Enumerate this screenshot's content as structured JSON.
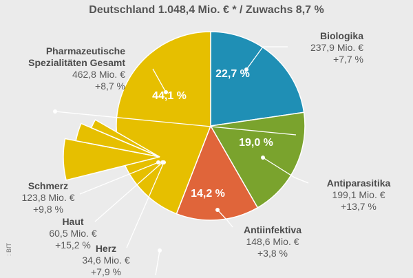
{
  "header": {
    "title": "Deutschland 1.048,4 Mio. € * / Zuwachs 8,7 %"
  },
  "source_text": ": BfT",
  "colors": {
    "biologika": "#1f8fb5",
    "antiparasitika": "#7aa32d",
    "antiinfektiva": "#e0653a",
    "pharma": "#e6bf00",
    "line": "#ffffff",
    "background": "#ebebeb"
  },
  "chart_data": {
    "type": "pie",
    "title": "Deutschland 1.048,4 Mio. € * / Zuwachs 8,7 %",
    "slices": [
      {
        "key": "biologika",
        "name": "Biologika",
        "value_text": "237,9 Mio. €",
        "growth_text": "+7,7 %",
        "percent": 22.7,
        "percent_text": "22,7 %"
      },
      {
        "key": "antiparasitika",
        "name": "Antiparasitika",
        "value_text": "199,1 Mio. €",
        "growth_text": "+13,7 %",
        "percent": 19.0,
        "percent_text": "19,0 %"
      },
      {
        "key": "antiinfektiva",
        "name": "Antiinfektiva",
        "value_text": "148,6 Mio. €",
        "growth_text": "+3,8 %",
        "percent": 14.2,
        "percent_text": "14,2 %"
      },
      {
        "key": "pharma",
        "name": "Pharmazeutische Spezialitäten Gesamt",
        "name_lines": [
          "Pharmazeutische",
          "Spezialitäten Gesamt"
        ],
        "value_text": "462,8 Mio. €",
        "growth_text": "+8,7 %",
        "percent": 44.1,
        "percent_text": "44,1 %"
      }
    ],
    "sub_slices": [
      {
        "key": "schmerz",
        "name": "Schmerz",
        "value_text": "123,8 Mio. €",
        "growth_text": "+9,8 %",
        "value": 123.8
      },
      {
        "key": "haut",
        "name": "Haut",
        "value_text": "60,5 Mio. €",
        "growth_text": "+15,2 %",
        "value": 60.5
      },
      {
        "key": "herz",
        "name": "Herz",
        "value_text": "34,6 Mio. €",
        "growth_text": "+7,9 %",
        "value": 34.6
      }
    ]
  }
}
